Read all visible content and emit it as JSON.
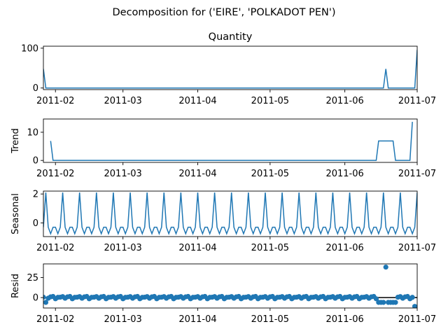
{
  "colors": {
    "series": "#1f77b4",
    "axis": "#000000",
    "background": "#ffffff"
  },
  "chart_data": {
    "type": "line",
    "suptitle": "Decomposition for ('EIRE', 'POLKADOT PEN')",
    "xlim": [
      "2011-01-27",
      "2011-07-01"
    ],
    "xticks": [
      "2011-02-01",
      "2011-03-01",
      "2011-04-01",
      "2011-05-01",
      "2011-06-01",
      "2011-07-01"
    ],
    "xtick_labels": [
      "2011-02",
      "2011-03",
      "2011-04",
      "2011-05",
      "2011-06",
      "2011-07"
    ],
    "panels": [
      {
        "key": "observed",
        "title": "Quantity",
        "ylabel": "",
        "kind": "line",
        "ylim": [
          -4,
          105
        ],
        "yticks": [
          0,
          100
        ],
        "points": [
          [
            "2011-01-27",
            48
          ],
          [
            "2011-01-28",
            0
          ],
          [
            "2011-06-17",
            0
          ],
          [
            "2011-06-18",
            48
          ],
          [
            "2011-06-19",
            0
          ],
          [
            "2011-06-30",
            0
          ],
          [
            "2011-07-01",
            96
          ]
        ]
      },
      {
        "key": "trend",
        "title": "",
        "ylabel": "Trend",
        "kind": "line",
        "ylim": [
          -0.7,
          14.7
        ],
        "yticks": [
          0,
          10
        ],
        "points": [
          [
            "2011-01-30",
            6.9
          ],
          [
            "2011-01-31",
            0
          ],
          [
            "2011-06-14",
            0
          ],
          [
            "2011-06-15",
            6.9
          ],
          [
            "2011-06-21",
            6.9
          ],
          [
            "2011-06-22",
            0
          ],
          [
            "2011-06-28",
            0
          ],
          [
            "2011-06-29",
            13.7
          ]
        ]
      },
      {
        "key": "seasonal",
        "title": "",
        "ylabel": "Seasonal",
        "kind": "periodic",
        "ylim": [
          -0.95,
          2.2
        ],
        "yticks": [
          0,
          2
        ],
        "period_start": "2011-01-27",
        "period_pattern": [
          -0.3,
          2.1,
          -0.3,
          -0.75,
          -0.3,
          -0.3,
          -0.75
        ]
      },
      {
        "key": "resid",
        "title": "",
        "ylabel": "Resid",
        "kind": "scatter",
        "ylim": [
          -13,
          42
        ],
        "yticks": [
          0,
          25
        ],
        "baseline": 0,
        "outliers": [
          [
            "2011-01-28",
            -6
          ],
          [
            "2011-06-18",
            38
          ],
          [
            "2011-06-30",
            -11
          ]
        ],
        "negative_run": {
          "start": "2011-06-15",
          "end": "2011-06-22",
          "value": -6
        },
        "base_pattern": [
          0.5,
          1.2,
          -0.8,
          0.9,
          1.4,
          -1.5,
          0.3
        ]
      }
    ]
  }
}
